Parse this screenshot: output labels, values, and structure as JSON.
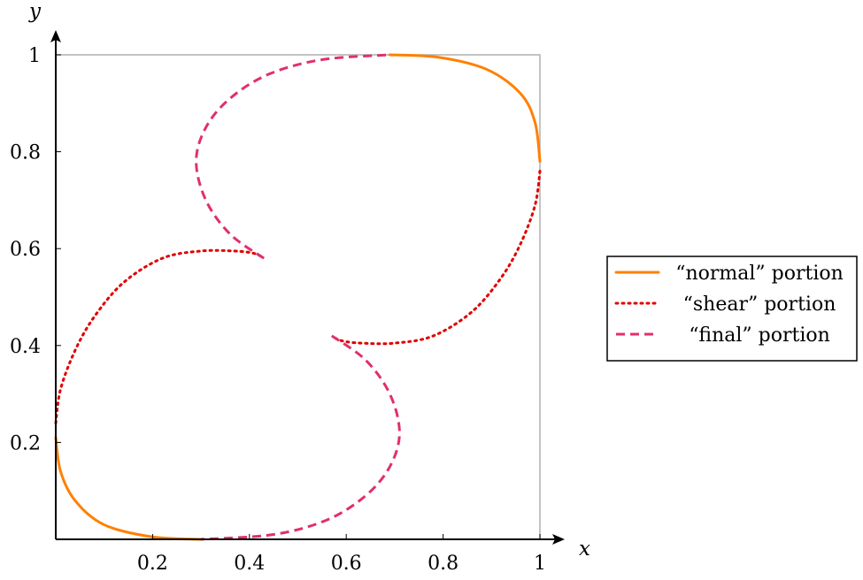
{
  "chart_data": {
    "type": "line",
    "xlabel": "x",
    "ylabel": "y",
    "xlim": [
      0,
      1
    ],
    "ylim": [
      0,
      1
    ],
    "x_ticks": [
      "0.2",
      "0.4",
      "0.6",
      "0.8",
      "1"
    ],
    "y_ticks": [
      "0.2",
      "0.4",
      "0.6",
      "0.8",
      "1"
    ],
    "grid": false,
    "legend_position": "right",
    "series": [
      {
        "name": "“normal” portion",
        "color": "#ff8000",
        "dash": "solid",
        "segments": [
          [
            [
              0.3,
              0.0
            ],
            [
              0.2,
              0.005
            ],
            [
              0.1,
              0.03
            ],
            [
              0.04,
              0.08
            ],
            [
              0.01,
              0.14
            ],
            [
              0.0,
              0.21
            ]
          ],
          [
            [
              0.69,
              1.0
            ],
            [
              0.79,
              0.995
            ],
            [
              0.89,
              0.97
            ],
            [
              0.96,
              0.92
            ],
            [
              0.99,
              0.86
            ],
            [
              1.0,
              0.78
            ]
          ]
        ]
      },
      {
        "name": "“shear” portion",
        "color": "#e00000",
        "dash": "dotted",
        "segments": [
          [
            [
              0.0,
              0.24
            ],
            [
              0.01,
              0.31
            ],
            [
              0.04,
              0.39
            ],
            [
              0.08,
              0.46
            ],
            [
              0.14,
              0.53
            ],
            [
              0.22,
              0.58
            ],
            [
              0.3,
              0.595
            ],
            [
              0.37,
              0.595
            ],
            [
              0.41,
              0.59
            ],
            [
              0.43,
              0.58
            ]
          ],
          [
            [
              1.0,
              0.76
            ],
            [
              0.99,
              0.69
            ],
            [
              0.96,
              0.61
            ],
            [
              0.92,
              0.54
            ],
            [
              0.86,
              0.47
            ],
            [
              0.78,
              0.42
            ],
            [
              0.7,
              0.405
            ],
            [
              0.63,
              0.405
            ],
            [
              0.59,
              0.41
            ],
            [
              0.57,
              0.42
            ]
          ]
        ]
      },
      {
        "name": "“final” portion",
        "color": "#e0306b",
        "dash": "dashed",
        "segments": [
          [
            [
              0.43,
              0.58
            ],
            [
              0.36,
              0.63
            ],
            [
              0.31,
              0.7
            ],
            [
              0.29,
              0.78
            ],
            [
              0.31,
              0.85
            ],
            [
              0.36,
              0.91
            ],
            [
              0.44,
              0.96
            ],
            [
              0.55,
              0.99
            ],
            [
              0.69,
              1.0
            ]
          ],
          [
            [
              0.57,
              0.42
            ],
            [
              0.64,
              0.37
            ],
            [
              0.69,
              0.3
            ],
            [
              0.71,
              0.22
            ],
            [
              0.69,
              0.15
            ],
            [
              0.64,
              0.09
            ],
            [
              0.56,
              0.04
            ],
            [
              0.45,
              0.01
            ],
            [
              0.3,
              0.0
            ]
          ]
        ]
      }
    ]
  }
}
